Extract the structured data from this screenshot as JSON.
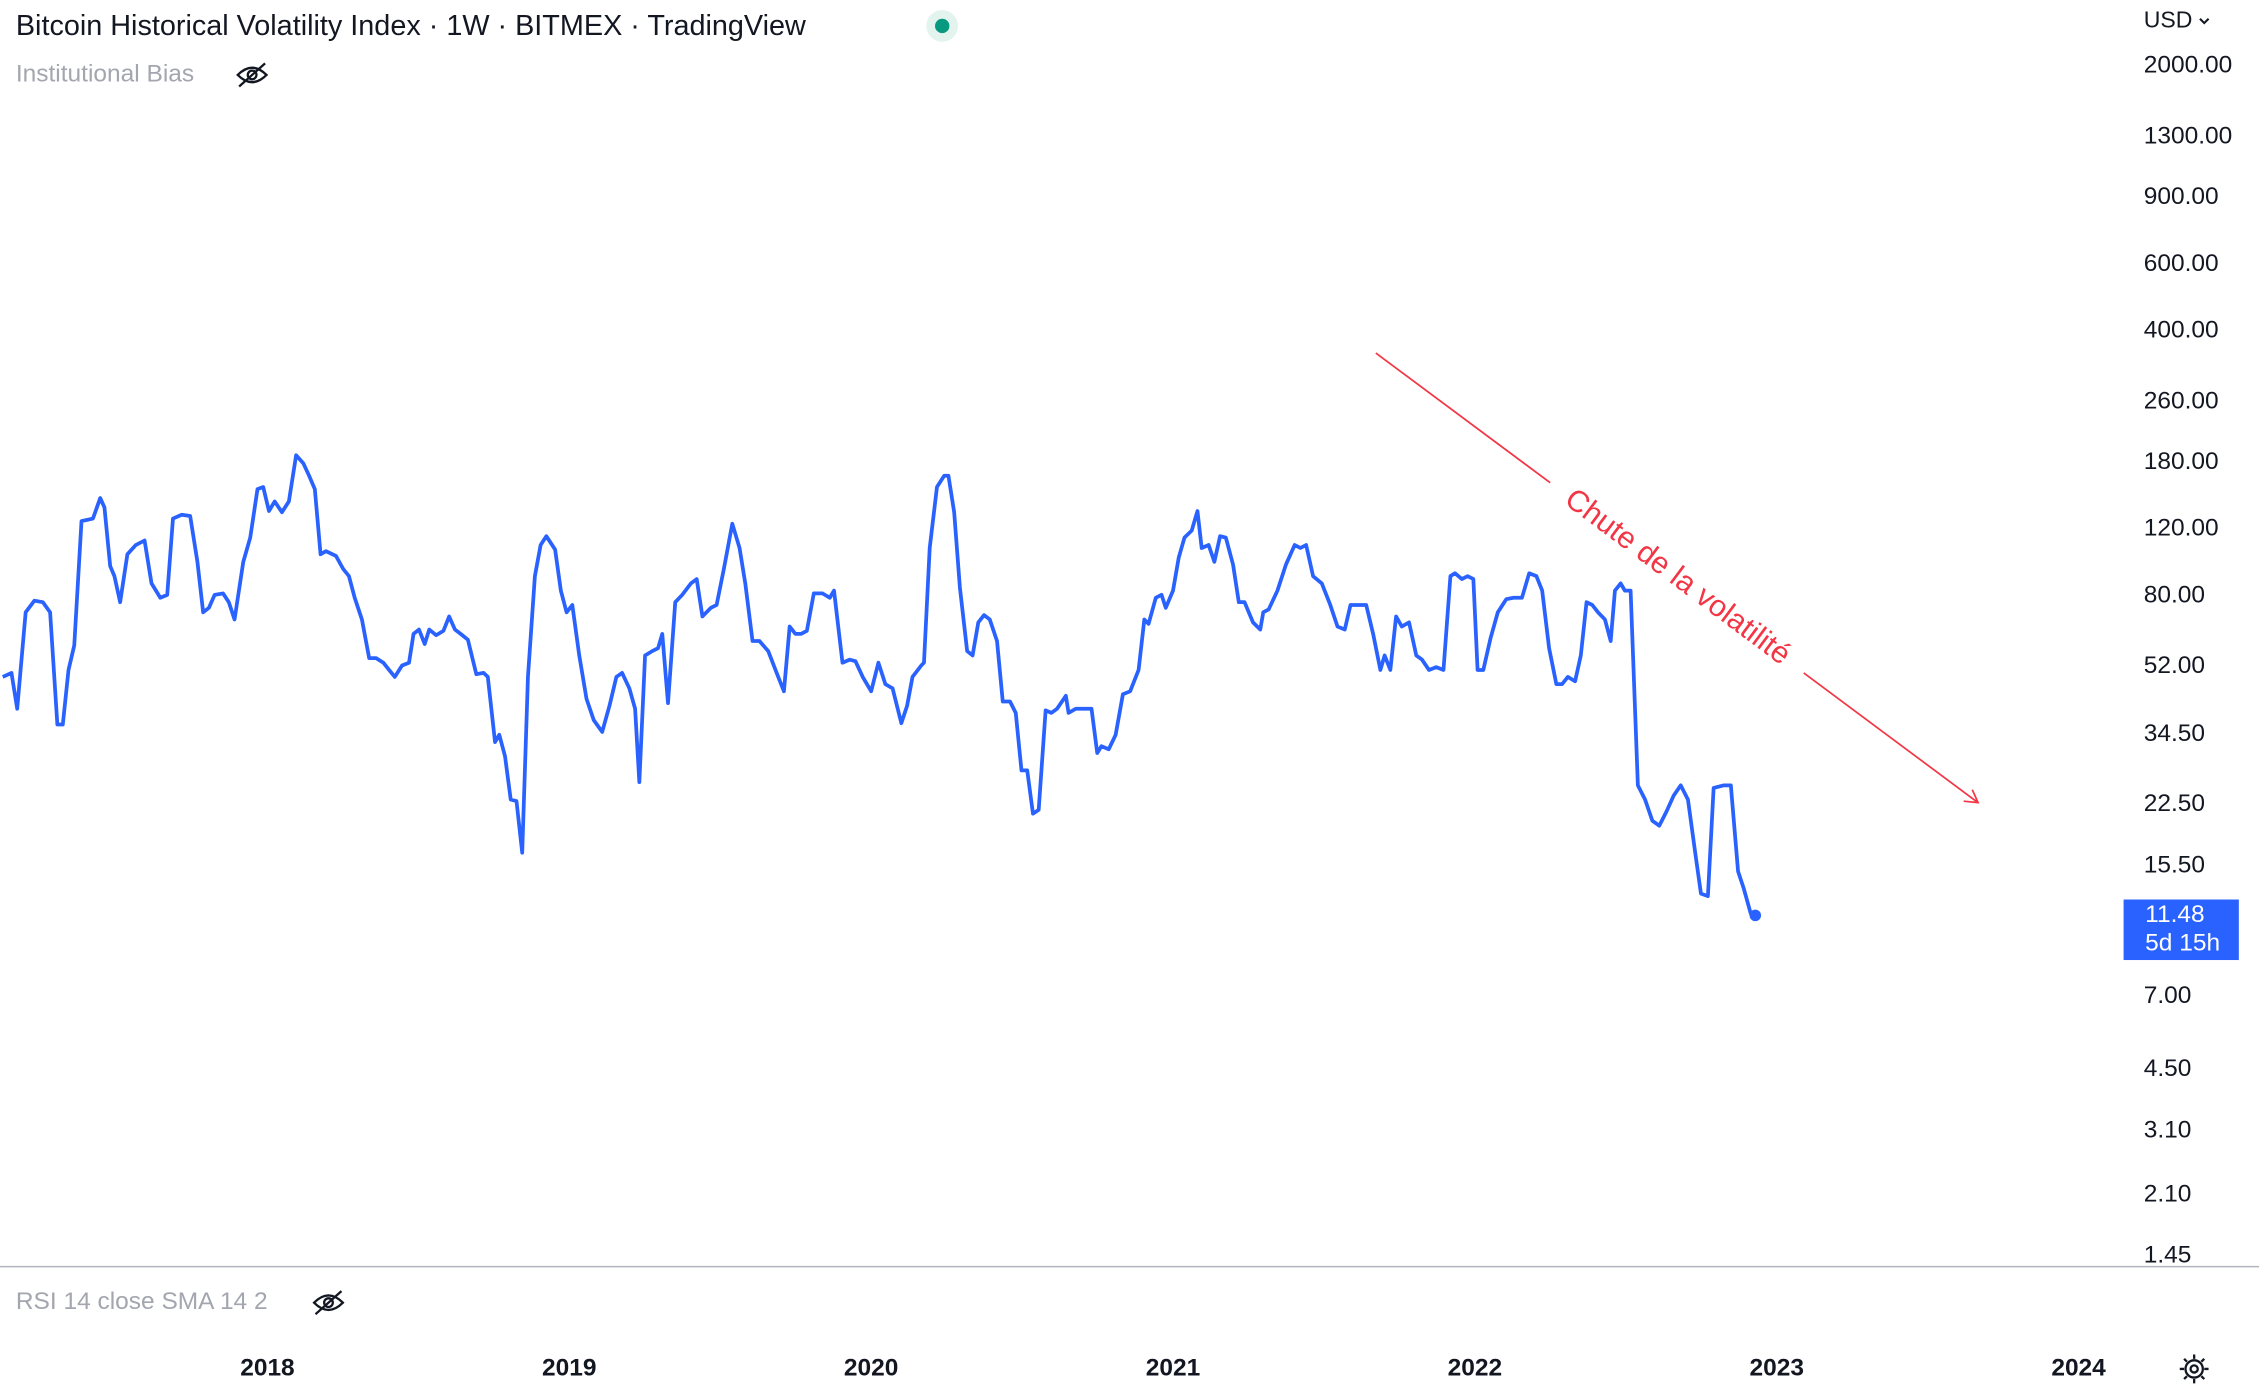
{
  "chart_data": {
    "type": "line",
    "title": "Bitcoin Historical Volatility Index · 1W · BITMEX · TradingView",
    "indicator": "Institutional Bias",
    "currency": "USD",
    "countdown": "5d 15h",
    "sub_indicator": "RSI 14 close SMA 14 2",
    "annotation": "Chute de la volatilité",
    "color": "#2962ff",
    "log_scale": true,
    "grid": false,
    "xlim": [
      2017.114,
      2024.13
    ],
    "xticks": [
      2018,
      2019,
      2020,
      2021,
      2022,
      2023,
      2024
    ],
    "ylim": [
      1.37,
      2990
    ],
    "yticks": [
      {
        "value": 2000,
        "label": "2000.00"
      },
      {
        "value": 1300,
        "label": "1300.00"
      },
      {
        "value": 900,
        "label": "900.00"
      },
      {
        "value": 600,
        "label": "600.00"
      },
      {
        "value": 400,
        "label": "400.00"
      },
      {
        "value": 260,
        "label": "260.00"
      },
      {
        "value": 180,
        "label": "180.00"
      },
      {
        "value": 120,
        "label": "120.00"
      },
      {
        "value": 80,
        "label": "80.00"
      },
      {
        "value": 52,
        "label": "52.00"
      },
      {
        "value": 34.5,
        "label": "34.50"
      },
      {
        "value": 22.5,
        "label": "22.50"
      },
      {
        "value": 15.5,
        "label": "15.50"
      },
      {
        "value": 7,
        "label": "7.00"
      },
      {
        "value": 4.5,
        "label": "4.50"
      },
      {
        "value": 3.1,
        "label": "3.10"
      },
      {
        "value": 2.1,
        "label": "2.10"
      },
      {
        "value": 1.45,
        "label": "1.45"
      }
    ],
    "x": [
      2017.123,
      2017.152,
      2017.171,
      2017.199,
      2017.228,
      2017.256,
      2017.28,
      2017.304,
      2017.322,
      2017.341,
      2017.36,
      2017.384,
      2017.422,
      2017.446,
      2017.46,
      2017.479,
      2017.493,
      2017.512,
      2017.536,
      2017.564,
      2017.593,
      2017.616,
      2017.645,
      2017.668,
      2017.687,
      2017.716,
      2017.744,
      2017.768,
      2017.787,
      2017.806,
      2017.825,
      2017.853,
      2017.872,
      2017.891,
      2017.92,
      2017.943,
      2017.967,
      2017.986,
      2018.005,
      2018.024,
      2018.048,
      2018.071,
      2018.095,
      2018.119,
      2018.138,
      2018.157,
      2018.176,
      2018.194,
      2018.227,
      2018.251,
      2018.27,
      2018.289,
      2018.313,
      2018.337,
      2018.36,
      2018.384,
      2018.403,
      2018.422,
      2018.446,
      2018.469,
      2018.484,
      2018.502,
      2018.521,
      2018.536,
      2018.559,
      2018.583,
      2018.602,
      2018.621,
      2018.64,
      2018.664,
      2018.692,
      2018.716,
      2018.73,
      2018.754,
      2018.768,
      2018.787,
      2018.806,
      2018.825,
      2018.844,
      2018.863,
      2018.886,
      2018.905,
      2018.924,
      2018.953,
      2018.972,
      2018.991,
      2019.01,
      2019.033,
      2019.057,
      2019.081,
      2019.109,
      2019.133,
      2019.156,
      2019.175,
      2019.199,
      2019.218,
      2019.232,
      2019.251,
      2019.275,
      2019.294,
      2019.308,
      2019.327,
      2019.351,
      2019.374,
      2019.403,
      2019.422,
      2019.441,
      2019.469,
      2019.488,
      2019.512,
      2019.54,
      2019.564,
      2019.583,
      2019.607,
      2019.63,
      2019.659,
      2019.687,
      2019.711,
      2019.73,
      2019.749,
      2019.768,
      2019.787,
      2019.81,
      2019.839,
      2019.863,
      2019.877,
      2019.905,
      2019.929,
      2019.948,
      2019.972,
      2020.0,
      2020.024,
      2020.047,
      2020.071,
      2020.1,
      2020.119,
      2020.137,
      2020.166,
      2020.175,
      2020.194,
      2020.218,
      2020.242,
      2020.256,
      2020.275,
      2020.294,
      2020.318,
      2020.336,
      2020.355,
      2020.374,
      2020.393,
      2020.417,
      2020.436,
      2020.46,
      2020.479,
      2020.498,
      2020.517,
      2020.536,
      2020.555,
      2020.578,
      2020.597,
      2020.616,
      2020.645,
      2020.654,
      2020.678,
      2020.697,
      2020.73,
      2020.749,
      2020.763,
      2020.787,
      2020.81,
      2020.834,
      2020.858,
      2020.886,
      2020.905,
      2020.919,
      2020.943,
      2020.962,
      2020.976,
      2021.0,
      2021.019,
      2021.038,
      2021.062,
      2021.081,
      2021.095,
      2021.118,
      2021.137,
      2021.156,
      2021.175,
      2021.199,
      2021.218,
      2021.237,
      2021.265,
      2021.289,
      2021.299,
      2021.317,
      2021.346,
      2021.374,
      2021.403,
      2021.422,
      2021.441,
      2021.464,
      2021.493,
      2021.521,
      2021.545,
      2021.569,
      2021.588,
      2021.611,
      2021.64,
      2021.663,
      2021.687,
      2021.701,
      2021.72,
      2021.739,
      2021.758,
      2021.782,
      2021.806,
      2021.825,
      2021.848,
      2021.872,
      2021.896,
      2021.919,
      2021.934,
      2021.957,
      2021.976,
      2021.995,
      2022.009,
      2022.028,
      2022.052,
      2022.076,
      2022.104,
      2022.128,
      2022.156,
      2022.18,
      2022.204,
      2022.223,
      2022.246,
      2022.27,
      2022.289,
      2022.308,
      2022.332,
      2022.351,
      2022.37,
      2022.389,
      2022.408,
      2022.431,
      2022.45,
      2022.464,
      2022.483,
      2022.497,
      2022.516,
      2022.54,
      2022.564,
      2022.588,
      2022.611,
      2022.635,
      2022.659,
      2022.682,
      2022.706,
      2022.73,
      2022.749,
      2022.772,
      2022.791,
      2022.825,
      2022.848,
      2022.872,
      2022.891,
      2022.914,
      2022.929
    ],
    "values": [
      48.9,
      50.1,
      40.3,
      72.4,
      77.7,
      77.0,
      72.4,
      36.6,
      36.6,
      51.0,
      59.2,
      126,
      128,
      145,
      137,
      95.9,
      90.2,
      77.0,
      103,
      109,
      112,
      86.3,
      79.1,
      80.5,
      128,
      131,
      130,
      98.4,
      72.4,
      74.4,
      80.5,
      81.2,
      77.0,
      69.3,
      98.4,
      114,
      153,
      155,
      134,
      142,
      133,
      142,
      188,
      179,
      166,
      153,
      103,
      105,
      102,
      94.2,
      90.2,
      79.1,
      69.3,
      54.8,
      54.8,
      53.3,
      51.0,
      48.9,
      52.4,
      53.3,
      63.5,
      65.2,
      59.7,
      65.2,
      63.0,
      64.7,
      70.6,
      65.2,
      63.5,
      61.3,
      49.7,
      50.1,
      48.9,
      32.9,
      34.4,
      30.2,
      23.2,
      23.0,
      16.8,
      48.9,
      90.2,
      109,
      115,
      106,
      82.6,
      72.4,
      75.7,
      55.7,
      42.8,
      37.6,
      35.0,
      41.0,
      48.9,
      50.1,
      45.6,
      40.3,
      25.8,
      55.7,
      57.2,
      58.2,
      63.5,
      41.7,
      77.0,
      80.5,
      86.3,
      88.6,
      70.6,
      74.4,
      75.7,
      94.2,
      124,
      107,
      86.3,
      60.8,
      60.8,
      57.2,
      50.1,
      44.8,
      66.4,
      63.5,
      63.5,
      64.7,
      81.2,
      81.2,
      79.1,
      82.6,
      53.3,
      54.3,
      53.8,
      48.9,
      44.8,
      53.3,
      46.8,
      45.6,
      36.9,
      41.0,
      48.9,
      52.4,
      53.3,
      107,
      155,
      166,
      166,
      133,
      84.1,
      57.2,
      55.7,
      68.1,
      71.2,
      69.3,
      60.8,
      42.1,
      42.1,
      39.3,
      27.7,
      27.7,
      21.3,
      21.8,
      39.9,
      39.3,
      40.3,
      43.6,
      39.3,
      40.3,
      40.3,
      40.3,
      30.8,
      32.1,
      31.5,
      34.4,
      44.0,
      44.8,
      51.0,
      69.3,
      67.5,
      79.1,
      80.5,
      74.4,
      82.6,
      101,
      114,
      119,
      134,
      107,
      109,
      98.4,
      115,
      114,
      96.7,
      77.0,
      77.0,
      68.1,
      65.2,
      72.4,
      73.7,
      82.6,
      96.7,
      109,
      107,
      109,
      90.2,
      86.3,
      75.7,
      66.4,
      65.2,
      75.7,
      75.7,
      75.7,
      63.5,
      51.0,
      55.7,
      51.0,
      70.6,
      66.4,
      68.1,
      55.7,
      54.3,
      51.0,
      51.9,
      51.0,
      90.2,
      91.8,
      88.6,
      90.2,
      88.6,
      51.0,
      51.0,
      61.9,
      72.4,
      78.4,
      79.1,
      79.1,
      91.8,
      90.2,
      82.6,
      58.2,
      46.8,
      46.8,
      48.9,
      47.6,
      55.7,
      77.0,
      75.7,
      72.4,
      69.3,
      60.8,
      82.6,
      86.3,
      82.6,
      82.6,
      25.3,
      23.2,
      20.4,
      19.8,
      21.6,
      23.8,
      25.3,
      23.2,
      16.8,
      13.1,
      12.9,
      24.9,
      25.3,
      25.3,
      15.0,
      13.5,
      11.6,
      11.48
    ]
  }
}
